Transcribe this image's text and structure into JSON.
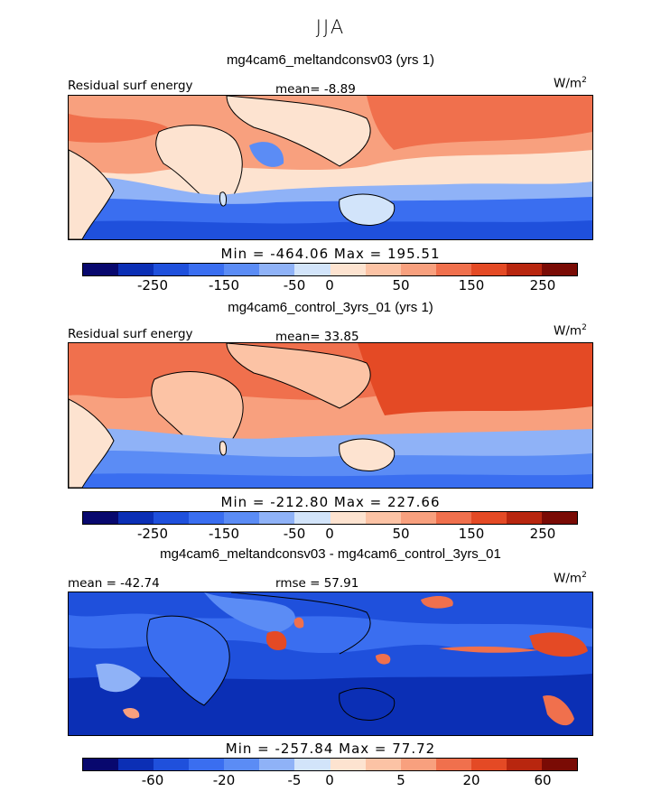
{
  "season": "JJA",
  "palette": [
    "#08086e",
    "#0b2fb5",
    "#1f50dc",
    "#3a6ef0",
    "#5b8cf5",
    "#8fb2f7",
    "#d2e4fa",
    "#fde3d0",
    "#fcc3a5",
    "#f8a07e",
    "#f0704d",
    "#e44a25",
    "#b8260f",
    "#7a0b05"
  ],
  "panels": [
    {
      "title": "mg4cam6_meltandconsv03 (yrs 1)",
      "left_label": "Residual surf energy",
      "center_label": "mean=  -8.89",
      "units": "W/m",
      "units_exp": "2",
      "minmax": "Min = -464.06 Max = 195.51",
      "ticks": [
        "-250",
        "-150",
        "-50",
        "0",
        "50",
        "150",
        "250"
      ]
    },
    {
      "title": "mg4cam6_control_3yrs_01 (yrs 1)",
      "left_label": "Residual surf energy",
      "center_label": "mean=  33.85",
      "units": "W/m",
      "units_exp": "2",
      "minmax": "Min = -212.80 Max = 227.66",
      "ticks": [
        "-250",
        "-150",
        "-50",
        "0",
        "50",
        "150",
        "250"
      ]
    },
    {
      "title": "mg4cam6_meltandconsv03 - mg4cam6_control_3yrs_01",
      "left_label": "mean = -42.74",
      "center_label": "rmse =  57.91",
      "units": "W/m",
      "units_exp": "2",
      "minmax": "Min = -257.84 Max =  77.72",
      "ticks": [
        "-60",
        "-20",
        "-5",
        "0",
        "5",
        "20",
        "60"
      ]
    }
  ]
}
